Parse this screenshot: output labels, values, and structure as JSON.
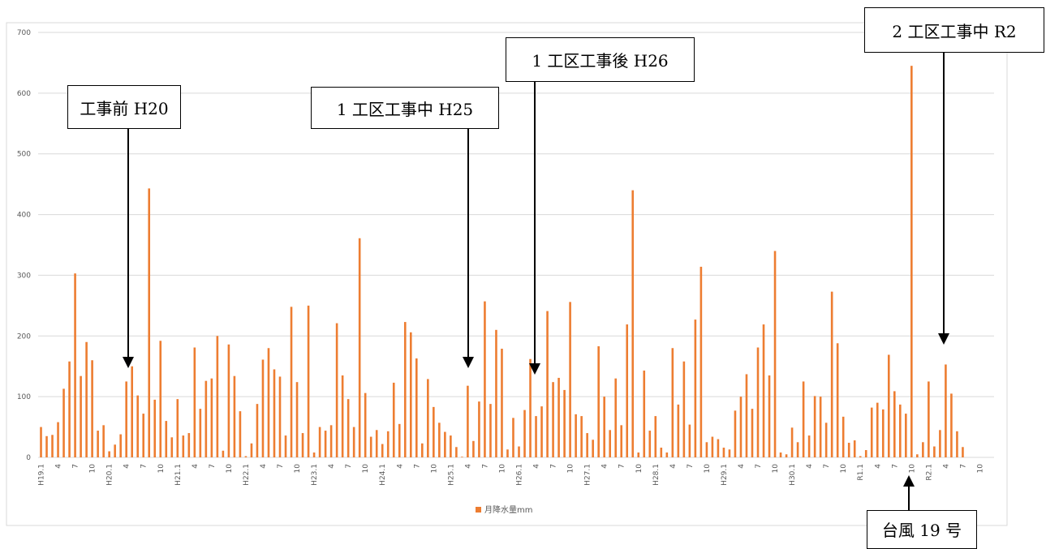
{
  "chart_data": {
    "type": "bar",
    "title": "",
    "xlabel": "",
    "ylabel": "",
    "ylim": [
      0,
      700
    ],
    "yticks": [
      0,
      100,
      200,
      300,
      400,
      500,
      600,
      700
    ],
    "grid": true,
    "legend_position": "bottom",
    "categories": [
      "H19.1",
      "",
      "",
      "4",
      "",
      "",
      "7",
      "",
      "",
      "10",
      "",
      "",
      "H20.1",
      "",
      "",
      "4",
      "",
      "",
      "7",
      "",
      "",
      "10",
      "",
      "",
      "H21.1",
      "",
      "",
      "4",
      "",
      "",
      "7",
      "",
      "",
      "10",
      "",
      "",
      "H22.1",
      "",
      "",
      "4",
      "",
      "",
      "7",
      "",
      "",
      "10",
      "",
      "",
      "H23.1",
      "",
      "",
      "4",
      "",
      "",
      "7",
      "",
      "",
      "10",
      "",
      "",
      "H24.1",
      "",
      "",
      "4",
      "",
      "",
      "7",
      "",
      "",
      "10",
      "",
      "",
      "H25.1",
      "",
      "",
      "4",
      "",
      "",
      "7",
      "",
      "",
      "10",
      "",
      "",
      "H26.1",
      "",
      "",
      "4",
      "",
      "",
      "7",
      "",
      "",
      "10",
      "",
      "",
      "H27.1",
      "",
      "",
      "4",
      "",
      "",
      "7",
      "",
      "",
      "10",
      "",
      "",
      "H28.1",
      "",
      "",
      "4",
      "",
      "",
      "7",
      "",
      "",
      "10",
      "",
      "",
      "H29.1",
      "",
      "",
      "4",
      "",
      "",
      "7",
      "",
      "",
      "10",
      "",
      "",
      "H30.1",
      "",
      "",
      "4",
      "",
      "",
      "7",
      "",
      "",
      "10",
      "",
      "",
      "R1.1",
      "",
      "",
      "4",
      "",
      "",
      "7",
      "",
      "",
      "10",
      "",
      "",
      "R2.1",
      "",
      "",
      "4",
      "",
      "",
      "7",
      "",
      "",
      "10",
      "",
      ""
    ],
    "series": [
      {
        "name": "月降水量mm",
        "color": "#ED7D31",
        "values": [
          50,
          35,
          37,
          58,
          113,
          158,
          303,
          134,
          190,
          160,
          44,
          53,
          10,
          21,
          38,
          125,
          150,
          102,
          72,
          443,
          95,
          192,
          60,
          33,
          96,
          36,
          40,
          181,
          80,
          126,
          130,
          200,
          11,
          186,
          134,
          76,
          2,
          23,
          88,
          161,
          180,
          145,
          133,
          36,
          248,
          124,
          40,
          250,
          8,
          50,
          44,
          53,
          221,
          135,
          96,
          50,
          361,
          106,
          34,
          45,
          22,
          43,
          123,
          55,
          223,
          206,
          163,
          23,
          129,
          83,
          57,
          42,
          36,
          17,
          1,
          118,
          27,
          92,
          257,
          88,
          210,
          179,
          13,
          65,
          18,
          78,
          162,
          68,
          84,
          241,
          124,
          131,
          111,
          256,
          71,
          68,
          40,
          29,
          183,
          100,
          45,
          130,
          53,
          219,
          440,
          8,
          143,
          44,
          68,
          16,
          8,
          180,
          87,
          158,
          54,
          227,
          314,
          25,
          34,
          30,
          16,
          13,
          77,
          100,
          137,
          80,
          181,
          219,
          135,
          340,
          8,
          5,
          49,
          25,
          125,
          36,
          101,
          100,
          57,
          273,
          188,
          67,
          24,
          28,
          2,
          12,
          82,
          90,
          79,
          169,
          109,
          87,
          72,
          645,
          5,
          25,
          125,
          18,
          45,
          153,
          105,
          43,
          17,
          0,
          0,
          0,
          0,
          0
        ]
      }
    ]
  },
  "annotations": [
    {
      "text": "工事前 H20"
    },
    {
      "text": "1 工区工事中 H25"
    },
    {
      "text": "1 工区工事後 H26"
    },
    {
      "text": "2 工区工事中 R2"
    },
    {
      "text": "台風 19 号"
    }
  ]
}
